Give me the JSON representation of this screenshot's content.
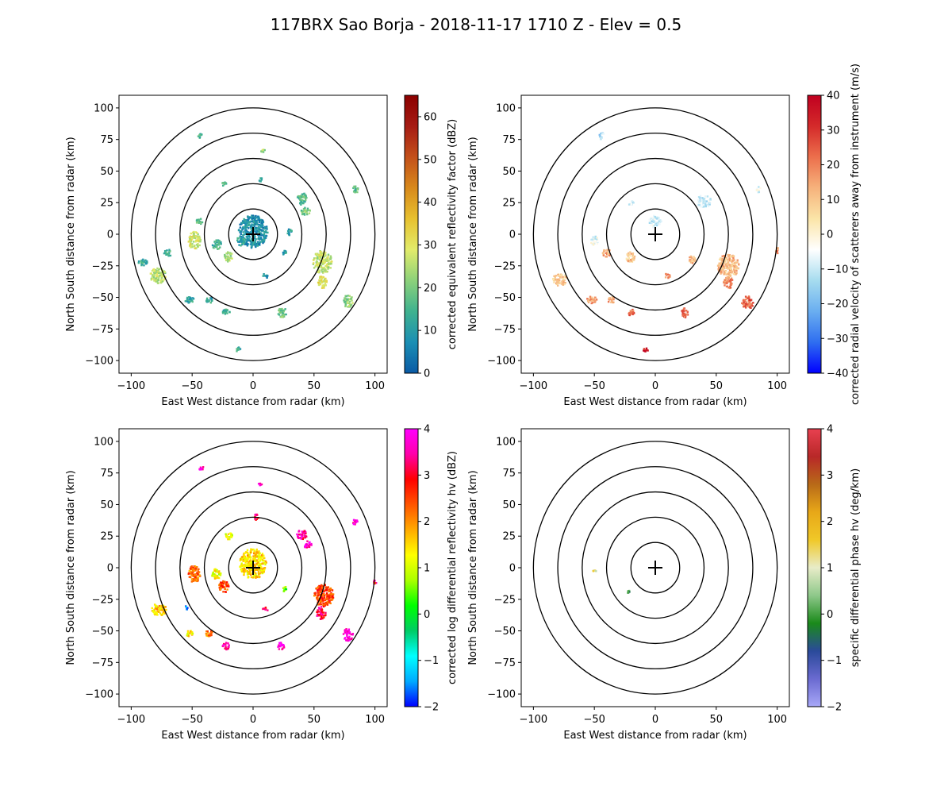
{
  "figure": {
    "title": "117BRX Sao Borja - 2018-11-17 1710 Z -  Elev = 0.5"
  },
  "chart_data": [
    {
      "type": "heatmap",
      "id": "reflectivity",
      "xlabel": "East West distance from radar (km)",
      "ylabel": "North South distance from radar (km)",
      "xlim": [
        -110,
        110
      ],
      "ylim": [
        -110,
        110
      ],
      "xticks": [
        -100,
        -50,
        0,
        50,
        100
      ],
      "yticks": [
        -100,
        -75,
        -50,
        -25,
        0,
        25,
        50,
        75,
        100
      ],
      "range_rings_km": [
        20,
        40,
        60,
        80,
        100
      ],
      "colorbar": {
        "label": "corrected equivalent reflectivity factor (dBZ)",
        "min": 0,
        "max": 65,
        "ticks": [
          0,
          10,
          20,
          30,
          40,
          50,
          60
        ],
        "colors": [
          "#0a5aa5",
          "#1b8fb4",
          "#3fb28f",
          "#8cd17a",
          "#e2ec6a",
          "#e7c12f",
          "#d8891b",
          "#c3501a",
          "#a61c14",
          "#8b0000"
        ]
      },
      "echoes": [
        {
          "x": 0,
          "y": 2,
          "w": 24,
          "h": 26,
          "v": 8
        },
        {
          "x": -20,
          "y": -18,
          "w": 8,
          "h": 8,
          "v": 24
        },
        {
          "x": -48,
          "y": -5,
          "w": 10,
          "h": 14,
          "v": 28
        },
        {
          "x": -30,
          "y": -8,
          "w": 8,
          "h": 8,
          "v": 14
        },
        {
          "x": -10,
          "y": -5,
          "w": 6,
          "h": 8,
          "v": 12
        },
        {
          "x": 40,
          "y": 28,
          "w": 8,
          "h": 10,
          "v": 16
        },
        {
          "x": 43,
          "y": 18,
          "w": 8,
          "h": 6,
          "v": 20
        },
        {
          "x": 57,
          "y": -22,
          "w": 16,
          "h": 18,
          "v": 26
        },
        {
          "x": 57,
          "y": -38,
          "w": 8,
          "h": 10,
          "v": 30
        },
        {
          "x": -78,
          "y": -33,
          "w": 14,
          "h": 12,
          "v": 26
        },
        {
          "x": -90,
          "y": -22,
          "w": 8,
          "h": 6,
          "v": 12
        },
        {
          "x": -70,
          "y": -15,
          "w": 6,
          "h": 6,
          "v": 14
        },
        {
          "x": -52,
          "y": -52,
          "w": 8,
          "h": 5,
          "v": 12
        },
        {
          "x": -36,
          "y": -52,
          "w": 6,
          "h": 5,
          "v": 12
        },
        {
          "x": -22,
          "y": -62,
          "w": 6,
          "h": 5,
          "v": 14
        },
        {
          "x": 24,
          "y": -62,
          "w": 7,
          "h": 8,
          "v": 18
        },
        {
          "x": 78,
          "y": -53,
          "w": 8,
          "h": 10,
          "v": 22
        },
        {
          "x": 84,
          "y": 36,
          "w": 5,
          "h": 7,
          "v": 18
        },
        {
          "x": -12,
          "y": -92,
          "w": 4,
          "h": 5,
          "v": 14
        },
        {
          "x": -43,
          "y": 78,
          "w": 4,
          "h": 4,
          "v": 14
        },
        {
          "x": 6,
          "y": 43,
          "w": 3,
          "h": 4,
          "v": 14
        },
        {
          "x": 8,
          "y": 66,
          "w": 4,
          "h": 3,
          "v": 24
        },
        {
          "x": -24,
          "y": 40,
          "w": 4,
          "h": 4,
          "v": 16
        },
        {
          "x": 26,
          "y": -15,
          "w": 4,
          "h": 4,
          "v": 10
        },
        {
          "x": 10,
          "y": -33,
          "w": 4,
          "h": 4,
          "v": 10
        },
        {
          "x": 30,
          "y": 2,
          "w": 4,
          "h": 6,
          "v": 10
        },
        {
          "x": -44,
          "y": 10,
          "w": 5,
          "h": 6,
          "v": 16
        }
      ]
    },
    {
      "type": "heatmap",
      "id": "velocity",
      "xlabel": "East West distance from radar (km)",
      "ylabel": "North South distance from radar (km)",
      "xlim": [
        -110,
        110
      ],
      "ylim": [
        -110,
        110
      ],
      "xticks": [
        -100,
        -50,
        0,
        50,
        100
      ],
      "yticks": [
        -100,
        -75,
        -50,
        -25,
        0,
        25,
        50,
        75,
        100
      ],
      "range_rings_km": [
        20,
        40,
        60,
        80,
        100
      ],
      "colorbar": {
        "label": "corrected radial velocity of scatterers away from instrument (m/s)",
        "min": -40,
        "max": 40,
        "ticks": [
          -40,
          -30,
          -20,
          -10,
          0,
          10,
          20,
          30,
          40
        ],
        "colors": [
          "#0000ff",
          "#2f6ef0",
          "#6aaef0",
          "#a6dcef",
          "#ffffff",
          "#fbe5a8",
          "#f6b27c",
          "#ec6f4c",
          "#d42a2a",
          "#c00020"
        ]
      },
      "echoes": [
        {
          "x": 0,
          "y": 10,
          "w": 10,
          "h": 10,
          "v": -8
        },
        {
          "x": -20,
          "y": 25,
          "w": 5,
          "h": 4,
          "v": -8
        },
        {
          "x": 40,
          "y": 26,
          "w": 12,
          "h": 10,
          "v": -10
        },
        {
          "x": 60,
          "y": -25,
          "w": 18,
          "h": 18,
          "v": 12
        },
        {
          "x": 60,
          "y": -38,
          "w": 8,
          "h": 10,
          "v": 18
        },
        {
          "x": -40,
          "y": -15,
          "w": 8,
          "h": 6,
          "v": 14
        },
        {
          "x": -20,
          "y": -18,
          "w": 8,
          "h": 8,
          "v": 10
        },
        {
          "x": -78,
          "y": -36,
          "w": 12,
          "h": 10,
          "v": 10
        },
        {
          "x": -52,
          "y": -52,
          "w": 8,
          "h": 6,
          "v": 16
        },
        {
          "x": -36,
          "y": -52,
          "w": 6,
          "h": 5,
          "v": 16
        },
        {
          "x": -20,
          "y": -62,
          "w": 6,
          "h": 6,
          "v": 22
        },
        {
          "x": 24,
          "y": -62,
          "w": 6,
          "h": 8,
          "v": 24
        },
        {
          "x": 76,
          "y": -54,
          "w": 10,
          "h": 10,
          "v": 24
        },
        {
          "x": -44,
          "y": 78,
          "w": 4,
          "h": 6,
          "v": -14
        },
        {
          "x": -8,
          "y": -92,
          "w": 4,
          "h": 4,
          "v": 34
        },
        {
          "x": -50,
          "y": -5,
          "w": 6,
          "h": 8,
          "v": -6
        },
        {
          "x": 85,
          "y": 35,
          "w": 4,
          "h": 5,
          "v": -6
        },
        {
          "x": 30,
          "y": -20,
          "w": 6,
          "h": 6,
          "v": 12
        },
        {
          "x": 10,
          "y": -33,
          "w": 5,
          "h": 4,
          "v": 20
        },
        {
          "x": 100,
          "y": -13,
          "w": 3,
          "h": 5,
          "v": 18
        }
      ]
    },
    {
      "type": "heatmap",
      "id": "zdr",
      "xlabel": "East West distance from radar (km)",
      "ylabel": "North South distance from radar (km)",
      "xlim": [
        -110,
        110
      ],
      "ylim": [
        -110,
        110
      ],
      "xticks": [
        -100,
        -50,
        0,
        50,
        100
      ],
      "yticks": [
        -100,
        -75,
        -50,
        -25,
        0,
        25,
        50,
        75,
        100
      ],
      "range_rings_km": [
        20,
        40,
        60,
        80,
        100
      ],
      "colorbar": {
        "label": "corrected log differential reflectivity hv (dBZ)",
        "min": -2,
        "max": 4,
        "ticks": [
          -2,
          -1,
          0,
          1,
          2,
          3,
          4
        ],
        "colors": [
          "#0000ff",
          "#00aaff",
          "#00ffff",
          "#00cc66",
          "#00ff00",
          "#aaff00",
          "#ffff00",
          "#ffaa00",
          "#ff5500",
          "#ff0000",
          "#ff00aa",
          "#ff00ff"
        ]
      },
      "echoes": [
        {
          "x": 0,
          "y": 3,
          "w": 22,
          "h": 24,
          "v": 1.5
        },
        {
          "x": -48,
          "y": -5,
          "w": 10,
          "h": 14,
          "v": 2.2
        },
        {
          "x": -24,
          "y": -15,
          "w": 8,
          "h": 10,
          "v": 2.4
        },
        {
          "x": -30,
          "y": -5,
          "w": 8,
          "h": 8,
          "v": 1.2
        },
        {
          "x": 58,
          "y": -22,
          "w": 16,
          "h": 18,
          "v": 2.5
        },
        {
          "x": 56,
          "y": -36,
          "w": 8,
          "h": 10,
          "v": 3.2
        },
        {
          "x": -77,
          "y": -33,
          "w": 12,
          "h": 10,
          "v": 1.6
        },
        {
          "x": 78,
          "y": -53,
          "w": 8,
          "h": 10,
          "v": 3.8
        },
        {
          "x": 23,
          "y": -62,
          "w": 6,
          "h": 6,
          "v": 3.9
        },
        {
          "x": -22,
          "y": -62,
          "w": 6,
          "h": 6,
          "v": 3.5
        },
        {
          "x": -52,
          "y": -52,
          "w": 6,
          "h": 5,
          "v": 1.4
        },
        {
          "x": -36,
          "y": -52,
          "w": 6,
          "h": 5,
          "v": 2.2
        },
        {
          "x": 40,
          "y": 26,
          "w": 8,
          "h": 8,
          "v": 3.4
        },
        {
          "x": 45,
          "y": 18,
          "w": 6,
          "h": 6,
          "v": 3.6
        },
        {
          "x": 84,
          "y": 36,
          "w": 4,
          "h": 5,
          "v": 3.8
        },
        {
          "x": -42,
          "y": 78,
          "w": 4,
          "h": 4,
          "v": 3.7
        },
        {
          "x": 6,
          "y": 66,
          "w": 3,
          "h": 3,
          "v": 3.6
        },
        {
          "x": -20,
          "y": 25,
          "w": 6,
          "h": 6,
          "v": 1.2
        },
        {
          "x": 3,
          "y": 40,
          "w": 4,
          "h": 5,
          "v": 3.2
        },
        {
          "x": 100,
          "y": -12,
          "w": 3,
          "h": 4,
          "v": 3.0
        },
        {
          "x": -55,
          "y": -32,
          "w": 3,
          "h": 3,
          "v": -1.5
        },
        {
          "x": 10,
          "y": -33,
          "w": 5,
          "h": 3,
          "v": 3.0
        },
        {
          "x": 26,
          "y": -17,
          "w": 4,
          "h": 4,
          "v": 0.5
        }
      ]
    },
    {
      "type": "heatmap",
      "id": "kdp",
      "xlabel": "East West distance from radar (km)",
      "ylabel": "North South distance from radar (km)",
      "xlim": [
        -110,
        110
      ],
      "ylim": [
        -110,
        110
      ],
      "xticks": [
        -100,
        -50,
        0,
        50,
        100
      ],
      "yticks": [
        -100,
        -75,
        -50,
        -25,
        0,
        25,
        50,
        75,
        100
      ],
      "range_rings_km": [
        20,
        40,
        60,
        80,
        100
      ],
      "colorbar": {
        "label": "specific differential phase hv (deg/km)",
        "min": -2,
        "max": 4,
        "ticks": [
          -2,
          -1,
          0,
          1,
          2,
          3,
          4
        ],
        "colors": [
          "#a8a8f8",
          "#6a6ad0",
          "#2a4a9a",
          "#1a8a1a",
          "#8ec88a",
          "#e8ecc8",
          "#f0c828",
          "#e8a818",
          "#b86a18",
          "#b82828",
          "#e84050"
        ]
      },
      "echoes": [
        {
          "x": -50,
          "y": -3,
          "w": 3,
          "h": 2,
          "v": 1.2
        },
        {
          "x": -22,
          "y": -19,
          "w": 2,
          "h": 2,
          "v": -0.2
        }
      ]
    }
  ]
}
